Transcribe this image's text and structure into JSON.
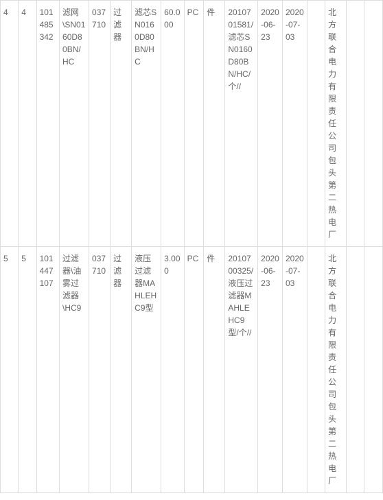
{
  "table": {
    "background_color": "#ffffff",
    "border_color": "#dddddd",
    "text_color": "#666666",
    "font_size": 12,
    "rows": [
      {
        "c1": "4",
        "c2": "4",
        "c3": "101485342",
        "c4": "滤网\\SN0160D80BN/HC",
        "c5": "037710",
        "c6": "过滤器",
        "c7": "滤芯SN0160D80BN/HC",
        "c8": "60.000",
        "c9": "PC",
        "c10": "件",
        "c11": "2010701581/滤芯SN0160D80BN/HC/个//",
        "c12": "2020-06-23",
        "c13": "2020-07-03",
        "c14": "",
        "c15": "北方联合电力有限责任公司包头第二热电厂",
        "c16": "",
        "c17": ""
      },
      {
        "c1": "5",
        "c2": "5",
        "c3": "101447107",
        "c4": "过滤器\\油雾过滤器\\HC9",
        "c5": "037710",
        "c6": "过滤器",
        "c7": "液压过滤器MAHLEHC9型",
        "c8": "3.000",
        "c9": "PC",
        "c10": "件",
        "c11": "2010700325/液压过滤器MAHLEHC9型/个//",
        "c12": "2020-06-23",
        "c13": "2020-07-03",
        "c14": "",
        "c15": "北方联合电力有限责任公司包头第二热电厂",
        "c16": "",
        "c17": ""
      }
    ]
  }
}
